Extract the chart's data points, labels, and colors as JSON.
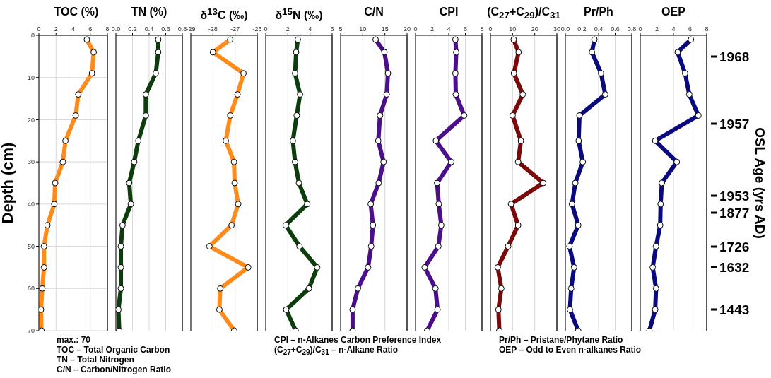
{
  "chart_data": [
    {
      "type": "line",
      "title": "TOC (%)",
      "ylabel": "Depth (cm)",
      "xlim": [
        0,
        8
      ],
      "xticks": [
        0,
        2,
        4,
        6,
        8
      ],
      "ylim": [
        70,
        0
      ],
      "yticks": [
        0,
        10,
        20,
        30,
        40,
        50,
        60,
        70
      ],
      "grid": true,
      "marker": "circle",
      "line_style": "solid",
      "annotations": [
        "max.: 70",
        "TOC – Total Organic Carbon",
        "TN – Total Nitrogen",
        "C/N – Carbon/Nitrogen Ratio"
      ],
      "series": [
        {
          "color": "#ff8c1a",
          "x": [
            5.6,
            6.4,
            6.2,
            4.6,
            4.3,
            3.1,
            2.8,
            1.9,
            1.8,
            1.0,
            0.6,
            0.6,
            0.4,
            0.25,
            0.3
          ],
          "values": [
            1,
            4,
            9,
            14,
            19,
            25,
            30,
            35,
            40,
            45,
            50,
            55,
            60,
            65,
            70
          ]
        }
      ]
    },
    {
      "type": "line",
      "title": "TN (%)",
      "xlim": [
        0,
        0.8
      ],
      "xticks": [
        {
          "value": 0,
          "label": "0.0"
        },
        0.2,
        0.4,
        0.6,
        0.8
      ],
      "ylim": [
        70,
        0
      ],
      "yticks": [
        0,
        10,
        20,
        30,
        40,
        50,
        60,
        70
      ],
      "grid": true,
      "tick_labels": "x",
      "marker": "circle",
      "line_style": "solid",
      "series": [
        {
          "color": "#0d3d0d",
          "x": [
            0.51,
            0.51,
            0.48,
            0.36,
            0.36,
            0.27,
            0.22,
            0.16,
            0.18,
            0.08,
            0.06,
            0.06,
            0.06,
            0.03,
            0.04
          ],
          "values": [
            1,
            4,
            9,
            14,
            19,
            25,
            30,
            35,
            40,
            45,
            50,
            55,
            60,
            65,
            70
          ]
        }
      ]
    },
    {
      "type": "line",
      "title": "δ$^{13}$C (‰)",
      "xlim": [
        -29,
        -26
      ],
      "xticks": [
        -29,
        -28,
        -27,
        -26
      ],
      "ylim": [
        70,
        0
      ],
      "yticks": [
        0,
        10,
        20,
        30,
        40,
        50,
        60,
        70
      ],
      "grid": true,
      "tick_labels": "x",
      "marker": "circle",
      "line_style": "solid",
      "series": [
        {
          "color": "#ff8c1a",
          "x": [
            -27.22,
            -28.0,
            -26.62,
            -26.89,
            -27.22,
            -27.42,
            -27.05,
            -27.02,
            -26.86,
            -27.16,
            -28.16,
            -26.41,
            -27.67,
            -27.71,
            -27.04
          ],
          "values": [
            1,
            4,
            9,
            14,
            19,
            25,
            30,
            35,
            40,
            45,
            50,
            55,
            60,
            65,
            70
          ]
        }
      ]
    },
    {
      "type": "line",
      "title": "δ$^{15}$N (‰)",
      "xlim": [
        0,
        6
      ],
      "xticks": [
        0,
        2,
        4,
        6
      ],
      "ylim": [
        70,
        0
      ],
      "yticks": [
        0,
        10,
        20,
        30,
        40,
        50,
        60,
        70
      ],
      "grid": true,
      "tick_labels": "x",
      "marker": "circle",
      "line_style": "solid",
      "annotations": [
        "CPI – n-Alkanes Carbon Preference Index",
        "(C$_{27}$+C$_{29}$)/C$_{31}$ – n-Alkane Ratio"
      ],
      "series": [
        {
          "color": "#0d3d0d",
          "x": [
            2.9,
            2.75,
            2.65,
            3.1,
            2.8,
            2.45,
            2.65,
            3.0,
            3.75,
            1.8,
            3.05,
            4.65,
            3.9,
            1.85,
            2.7
          ],
          "values": [
            1,
            4,
            9,
            14,
            19,
            25,
            30,
            35,
            40,
            45,
            50,
            55,
            60,
            65,
            70
          ]
        }
      ]
    },
    {
      "type": "line",
      "title": "C/N",
      "xlim": [
        5,
        20
      ],
      "xticks": [
        5,
        10,
        15,
        20
      ],
      "ylim": [
        70,
        0
      ],
      "yticks": [
        0,
        10,
        20,
        30,
        40,
        50,
        60,
        70
      ],
      "grid": true,
      "tick_labels": "x",
      "marker": "circle",
      "line_style": "solid",
      "series": [
        {
          "color": "#4b0f8c",
          "x": [
            12.9,
            14.9,
            15.7,
            15.4,
            13.9,
            13.5,
            14.7,
            13.6,
            11.8,
            12.3,
            11.9,
            11.2,
            8.9,
            7.7,
            7.7
          ],
          "values": [
            1,
            4,
            9,
            14,
            19,
            25,
            30,
            35,
            40,
            45,
            50,
            55,
            60,
            65,
            70
          ]
        }
      ]
    },
    {
      "type": "line",
      "title": "CPI",
      "xlim": [
        0,
        8
      ],
      "xticks": [
        0,
        2,
        4,
        6,
        8
      ],
      "ylim": [
        70,
        0
      ],
      "yticks": [
        0,
        10,
        20,
        30,
        40,
        50,
        60,
        70
      ],
      "grid": true,
      "tick_labels": "x",
      "marker": "circle",
      "line_style": "solid",
      "series": [
        {
          "color": "#4b0f8c",
          "x": [
            4.8,
            4.9,
            4.8,
            4.85,
            5.85,
            2.45,
            4.3,
            2.6,
            2.8,
            3.1,
            2.75,
            1.1,
            2.4,
            2.65,
            1.4
          ],
          "values": [
            1,
            4,
            9,
            14,
            19,
            25,
            30,
            35,
            40,
            45,
            50,
            55,
            60,
            65,
            70
          ]
        }
      ]
    },
    {
      "type": "line",
      "title": "(C$_{27}$+C$_{29}$)/C$_{31}$",
      "xlim": [
        0,
        30
      ],
      "xticks": [
        0,
        10,
        20,
        30
      ],
      "ylim": [
        70,
        0
      ],
      "yticks": [
        0,
        10,
        20,
        30,
        40,
        50,
        60,
        70
      ],
      "grid": true,
      "tick_labels": "x",
      "marker": "circle",
      "line_style": "solid",
      "annotations": [
        "Pr/Ph – Pristane/Phytane Ratio",
        "OEP – Odd to Even n-alkanes Ratio"
      ],
      "series": [
        {
          "color": "#7a0a0a",
          "x": [
            10.5,
            12.7,
            10.6,
            14.6,
            10.0,
            13.75,
            12.5,
            23.85,
            9.3,
            12.5,
            8.0,
            3.3,
            4.9,
            3.6,
            4.0
          ],
          "values": [
            1,
            4,
            9,
            14,
            19,
            25,
            30,
            35,
            40,
            45,
            50,
            55,
            60,
            65,
            70
          ]
        }
      ]
    },
    {
      "type": "line",
      "title": "Pr/Ph",
      "xlim": [
        0,
        0.8
      ],
      "xticks": [
        {
          "value": 0,
          "label": "0.0"
        },
        0.2,
        0.4,
        0.6,
        0.8
      ],
      "ylim": [
        70,
        0
      ],
      "yticks": [
        0,
        10,
        20,
        30,
        40,
        50,
        60,
        70
      ],
      "grid": true,
      "tick_labels": "x",
      "marker": "circle",
      "line_style": "solid",
      "series": [
        {
          "color": "#0a0a80",
          "x": [
            0.35,
            0.32,
            0.43,
            0.48,
            0.17,
            0.16,
            0.21,
            0.12,
            0.08,
            0.155,
            0.05,
            0.105,
            0.07,
            0.055,
            0.155
          ],
          "values": [
            1,
            4,
            9,
            14,
            19,
            25,
            30,
            35,
            40,
            45,
            50,
            55,
            60,
            65,
            70
          ]
        }
      ]
    },
    {
      "type": "line",
      "title": "OEP",
      "y2label": "OSL Age (yrs AD)",
      "xlim": [
        0,
        8
      ],
      "xticks": [
        0,
        2,
        4,
        6,
        8
      ],
      "ylim": [
        70,
        0
      ],
      "yticks": [
        0,
        10,
        20,
        30,
        40,
        50,
        60,
        70
      ],
      "annotations": [
        "1968",
        "1957",
        "1953",
        "1877",
        "1726",
        "1632",
        "1443"
      ],
      "grid": true,
      "tick_labels": "x",
      "marker": "circle",
      "line_style": "solid",
      "series": [
        {
          "color": "#0a0a80",
          "x": [
            6.1,
            4.5,
            5.4,
            5.9,
            7.0,
            1.8,
            4.4,
            2.6,
            2.45,
            2.4,
            1.9,
            1.5,
            1.9,
            1.8,
            1.1
          ],
          "values": [
            1,
            4,
            9,
            14,
            19,
            25,
            30,
            35,
            40,
            45,
            50,
            55,
            60,
            65,
            70
          ]
        }
      ]
    }
  ]
}
